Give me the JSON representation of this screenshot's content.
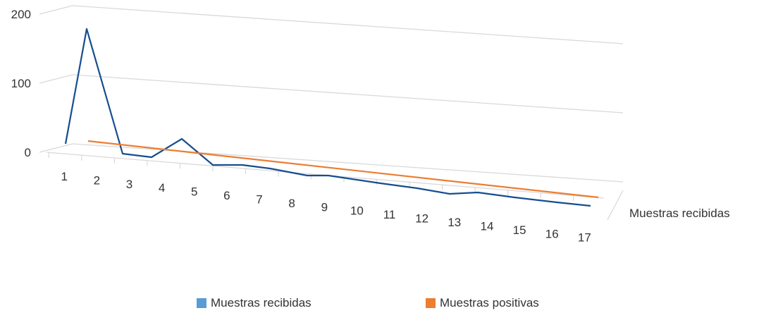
{
  "chart_data": {
    "type": "line",
    "view": "3d",
    "categories": [
      "1",
      "2",
      "3",
      "4",
      "5",
      "6",
      "7",
      "8",
      "9",
      "10",
      "11",
      "12",
      "13",
      "14",
      "15",
      "16",
      "17"
    ],
    "series": [
      {
        "name": "Muestras recibidas",
        "values": [
          4,
          176,
          4,
          5,
          30,
          10,
          16,
          19,
          18,
          25,
          25,
          20,
          18,
          22,
          24,
          22,
          22
        ],
        "color": "#174d8f"
      },
      {
        "name": "Muestras positivas",
        "values": [
          0,
          null,
          null,
          null,
          null,
          null,
          null,
          null,
          null,
          null,
          null,
          null,
          null,
          null,
          null,
          null,
          0
        ],
        "color": "#ed7d31"
      }
    ],
    "yticks": [
      0,
      100,
      200
    ],
    "ylim": [
      0,
      200
    ],
    "series_axis_label": "Muestras recibidas",
    "legend": [
      {
        "label": "Muestras recibidas",
        "color": "#5b9bd5"
      },
      {
        "label": "Muestras positivas",
        "color": "#ed7d31"
      }
    ],
    "legend_position": "bottom",
    "grid": true
  }
}
